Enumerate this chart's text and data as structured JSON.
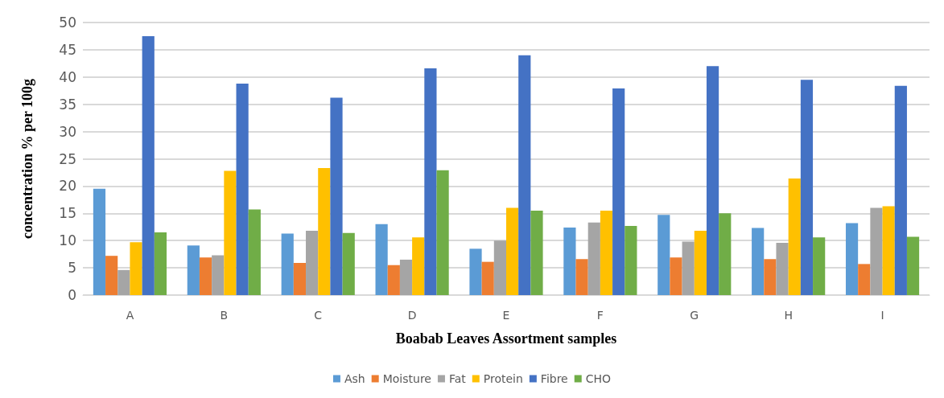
{
  "chart_data": {
    "type": "bar",
    "xlabel": "Boabab Leaves Assortment samples",
    "ylabel": "concentration % per 100g",
    "categories": [
      "A",
      "B",
      "C",
      "D",
      "E",
      "F",
      "G",
      "H",
      "I"
    ],
    "series": [
      {
        "name": "Ash",
        "color": "#5b9bd5",
        "values": [
          19.5,
          9.1,
          11.3,
          13.0,
          8.5,
          12.4,
          14.7,
          12.3,
          13.2
        ]
      },
      {
        "name": "Moisture",
        "color": "#ed7d31",
        "values": [
          7.2,
          6.9,
          5.9,
          5.5,
          6.1,
          6.6,
          6.9,
          6.6,
          5.7
        ]
      },
      {
        "name": "Fat",
        "color": "#a5a5a5",
        "values": [
          4.6,
          7.3,
          11.8,
          6.5,
          10.0,
          13.3,
          9.8,
          9.6,
          16.0
        ]
      },
      {
        "name": "Protein",
        "color": "#ffc000",
        "values": [
          9.7,
          22.8,
          23.3,
          10.6,
          16.0,
          15.5,
          11.8,
          21.4,
          16.3
        ]
      },
      {
        "name": "Fibre",
        "color": "#4472c4",
        "values": [
          47.5,
          38.8,
          36.2,
          41.6,
          44.0,
          37.9,
          42.0,
          39.5,
          38.4
        ]
      },
      {
        "name": "CHO",
        "color": "#70ad47",
        "values": [
          11.5,
          15.7,
          11.4,
          22.9,
          15.5,
          12.7,
          15.0,
          10.6,
          10.7
        ]
      }
    ],
    "ylim": [
      0,
      50
    ],
    "yticks": [
      0,
      5,
      10,
      15,
      20,
      25,
      30,
      35,
      40,
      45,
      50
    ],
    "grid": "y",
    "legend": "bottom"
  }
}
